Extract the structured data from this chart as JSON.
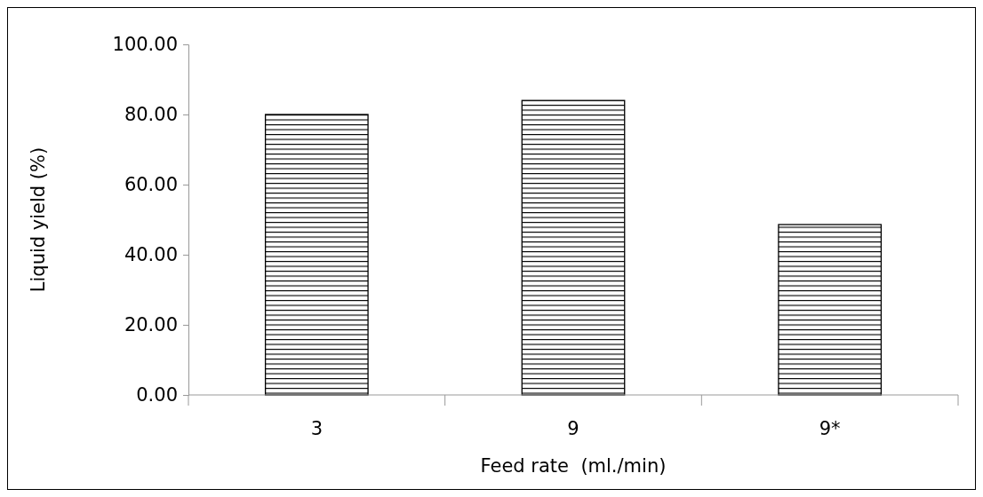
{
  "chart_data": {
    "type": "bar",
    "xlabel": "Feed rate  (ml./min)",
    "ylabel": "Liquid yield (%)",
    "categories": [
      "3",
      "9",
      "9*"
    ],
    "values": [
      80,
      84,
      48.6
    ],
    "color": "#000000",
    "ylim": [
      0,
      100
    ],
    "yticks": [
      {
        "value": 0,
        "label": "0.00"
      },
      {
        "value": 20,
        "label": "20.00"
      },
      {
        "value": 40,
        "label": "40.00"
      },
      {
        "value": 60,
        "label": "60.00"
      },
      {
        "value": 80,
        "label": "80.00"
      },
      {
        "value": 100,
        "label": "100.00"
      }
    ],
    "grid": false
  }
}
